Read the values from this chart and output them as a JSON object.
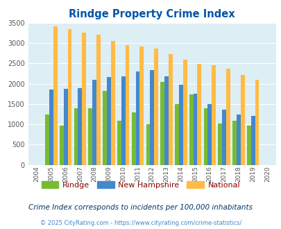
{
  "title": "Rindge Property Crime Index",
  "years": [
    2004,
    2005,
    2006,
    2007,
    2008,
    2009,
    2010,
    2011,
    2012,
    2013,
    2014,
    2015,
    2016,
    2017,
    2018,
    2019,
    2020
  ],
  "rindge": [
    0,
    1240,
    960,
    1400,
    1390,
    1820,
    1090,
    1290,
    1000,
    2040,
    1500,
    1740,
    1390,
    1020,
    1090,
    960,
    0
  ],
  "new_hampshire": [
    0,
    1850,
    1870,
    1890,
    2090,
    2160,
    2180,
    2300,
    2340,
    2180,
    1970,
    1760,
    1490,
    1360,
    1240,
    1210,
    0
  ],
  "national": [
    0,
    3420,
    3340,
    3260,
    3210,
    3050,
    2960,
    2910,
    2860,
    2730,
    2590,
    2490,
    2460,
    2370,
    2210,
    2100,
    0
  ],
  "rindge_color": "#77bb33",
  "nh_color": "#4488cc",
  "national_color": "#ffbb44",
  "bg_color": "#ddeef5",
  "title_color": "#0055aa",
  "legend_rindge_color": "#77bb33",
  "legend_nh_color": "#4488cc",
  "legend_national_color": "#ffbb44",
  "legend_text_color": "#880000",
  "note_text": "Crime Index corresponds to incidents per 100,000 inhabitants",
  "copyright_text": "© 2025 CityRating.com - https://www.cityrating.com/crime-statistics/",
  "copyright_color": "#4488cc",
  "note_color": "#003366",
  "ylim": [
    0,
    3500
  ],
  "yticks": [
    0,
    500,
    1000,
    1500,
    2000,
    2500,
    3000,
    3500
  ]
}
